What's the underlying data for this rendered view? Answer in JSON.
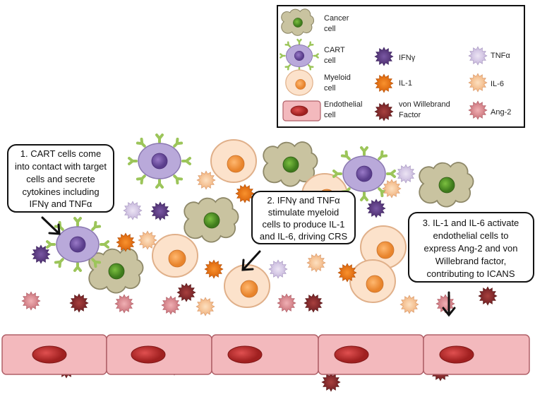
{
  "legend": {
    "cancer": [
      "Cancer",
      "cell"
    ],
    "cart": [
      "CART",
      "cell"
    ],
    "myeloid": [
      "Myeloid",
      "cell"
    ],
    "endothelial": [
      "Endothelial",
      "cell"
    ],
    "ifng": "IFNγ",
    "il1": "IL-1",
    "vwf": [
      "von  Willebrand",
      "Factor"
    ],
    "tnfa": "TNFα",
    "il6": "IL-6",
    "ang2": "Ang-2"
  },
  "callouts": {
    "step1": [
      "1. CART cells come",
      "into contact with target",
      "cells and secrete",
      "cytokines including",
      "IFNγ and TNFα"
    ],
    "step2": [
      "2. IFNγ and TNFα",
      "stimulate myeloid",
      "cells to produce IL-1",
      "and IL-6, driving CRS"
    ],
    "step3": [
      "3. IL-1 and IL-6 activate",
      "endothelial cells to",
      "express Ang-2 and von",
      "Willebrand factor,",
      "contributing to ICANS"
    ]
  },
  "colors": {
    "ifng": "#5b3a82",
    "il1": "#e8730f",
    "vwf": "#8c2b2e",
    "tnfa": "#d9cde9",
    "il6": "#f8c899",
    "ang2": "#e1939a",
    "cancer": "#c9c3a0",
    "cart": "#b9a9da",
    "myeloid": "#fce2cb",
    "endothelial": "#f3b9bd"
  }
}
